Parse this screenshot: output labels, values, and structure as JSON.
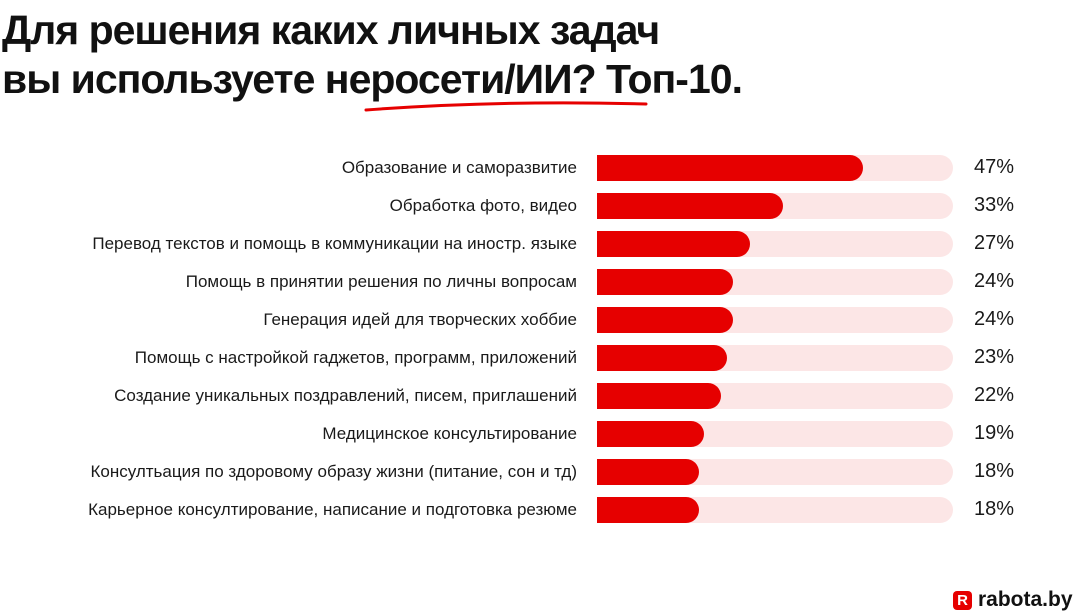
{
  "chart_data": {
    "type": "bar",
    "orientation": "horizontal",
    "title_line1": "Для решения каких личных задач",
    "title_line2": "вы используете нeросети/ИИ? Топ-10.",
    "categories": [
      "Образование и саморазвитие",
      "Обработка фото, видео",
      "Перевод текстов и помощь в коммуникации на иностр. языке",
      "Помощь в принятии решения по личны вопросам",
      "Генерация идей для творческих хоббие",
      "Помощь с настройкой гаджетов, программ, приложений",
      "Создание уникальных поздравлений, писем, приглашений",
      "Медицинское консультирование",
      "Консултьация по здоровому образу жизни (питание, сон и тд)",
      "Карьерное консултирование, написание и подготовка резюме"
    ],
    "values": [
      47,
      33,
      27,
      24,
      24,
      23,
      22,
      19,
      18,
      18
    ],
    "value_labels": [
      "47%",
      "33%",
      "27%",
      "24%",
      "24%",
      "23%",
      "22%",
      "19%",
      "18%",
      "18%"
    ],
    "xlim": [
      0,
      63
    ],
    "grid": false,
    "colors": {
      "bar": "#e60000",
      "track": "#fce6e6"
    }
  },
  "logo": {
    "mark": "R",
    "text": "rabota.by"
  }
}
